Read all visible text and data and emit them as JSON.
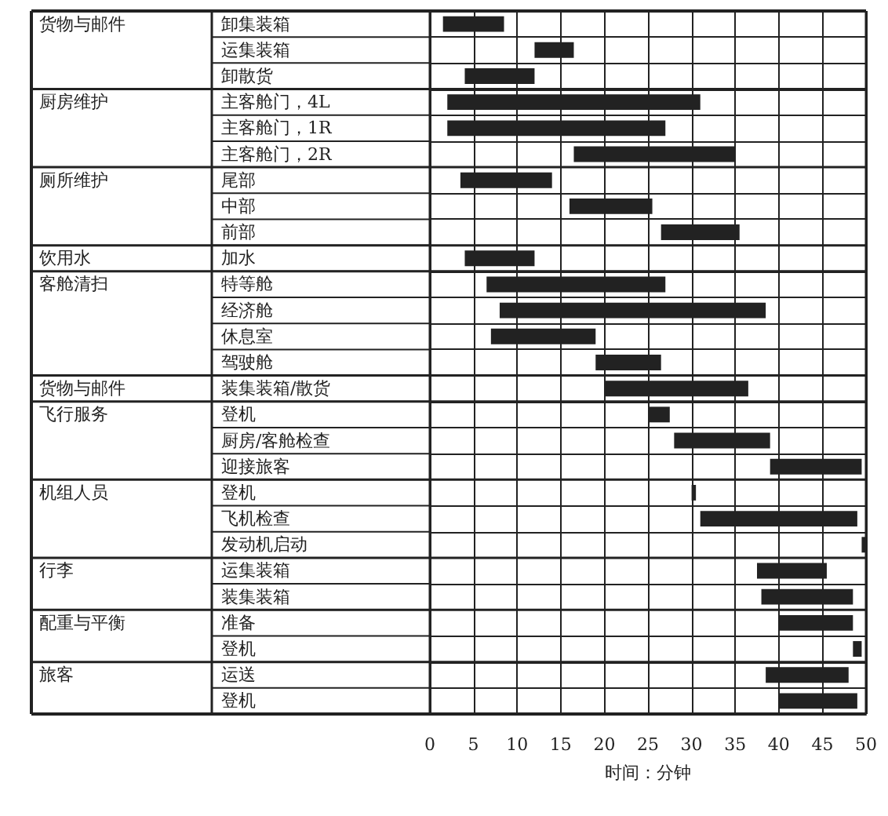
{
  "chart_data": {
    "type": "bar",
    "orientation": "horizontal",
    "xlabel": "时间：分钟",
    "categories": [
      "卸集装箱",
      "运集装箱",
      "卸散货",
      "主客舱门，4L",
      "主客舱门，1R",
      "主客舱门，2R",
      "尾部",
      "中部",
      "前部",
      "加水",
      "特等舱",
      "经济舱",
      "休息室",
      "驾驶舱",
      "装集装箱/散货",
      "登机",
      "厨房/客舱检查",
      "迎接旅客",
      "登机",
      "飞机检查",
      "发动机启动",
      "运集装箱",
      "装集装箱",
      "准备",
      "登机",
      "运送",
      "登机"
    ],
    "base": [
      1.5,
      12,
      4,
      2,
      2,
      16.5,
      3.5,
      16,
      26.5,
      4,
      6.5,
      8,
      7,
      19,
      20,
      25,
      28,
      39,
      30,
      31,
      49.5,
      37.5,
      38,
      40,
      48.5,
      38.5,
      40
    ],
    "values": [
      7,
      4.5,
      8,
      29,
      25,
      18.5,
      10.5,
      9.5,
      9,
      8,
      20.5,
      30.5,
      12,
      7.5,
      16.5,
      2.5,
      11,
      10.5,
      0.5,
      18,
      0.5,
      8,
      10.5,
      8.5,
      1,
      9.5,
      9
    ],
    "color": "#222222",
    "xlim": [
      0,
      50
    ],
    "xticks": [
      0,
      5,
      10,
      15,
      20,
      25,
      30,
      35,
      40,
      45,
      50
    ],
    "grid": true,
    "y2_categories": [
      "货物与邮件",
      null,
      null,
      "厨房维护",
      null,
      null,
      "厕所维护",
      null,
      null,
      "饮用水",
      "客舱清扫",
      null,
      null,
      null,
      "货物与邮件",
      "飞行服务",
      null,
      null,
      "机组人员",
      null,
      null,
      "行李",
      null,
      "配重与平衡",
      null,
      "旅客",
      null
    ]
  }
}
